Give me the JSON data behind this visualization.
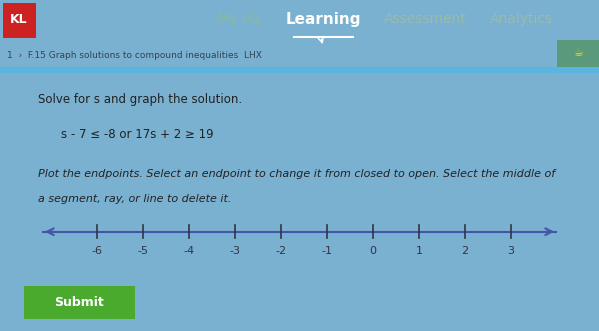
{
  "header_bg": "#2d5a4a",
  "header_text": "My IXL",
  "header_learning": "Learning",
  "header_assessment": "Assessment",
  "header_analytics": "Analytics",
  "nav_bg": "#c8daea",
  "nav_bg2": "#5ab4e0",
  "nav_text": "1  ›  F.15 Graph solutions to compound inequalities  LHX",
  "card_bg": "#dcdcd0",
  "title_line1": "Solve for s and graph the solution.",
  "equation": "s - 7 ≤ -8 or 17s + 2 ≥ 19",
  "instruction1": "Plot the endpoints. Select an endpoint to change it from closed to open. Select the middle of",
  "instruction2": "a segment, ray, or line to delete it.",
  "number_line_min": -7.2,
  "number_line_max": 4.0,
  "tick_labels": [
    "-6",
    "-5",
    "-4",
    "-3",
    "-2",
    "-1",
    "0",
    "1",
    "2",
    "3"
  ],
  "tick_values": [
    -6,
    -5,
    -4,
    -3,
    -2,
    -1,
    0,
    1,
    2,
    3
  ],
  "submit_bg": "#4aaa2e",
  "submit_text": "Submit",
  "submit_text_color": "#ffffff",
  "logo_bg": "#cc2222",
  "logo_text": "KL",
  "line_color": "#4455aa",
  "tick_color": "#333344",
  "main_bg": "#7ab0d0",
  "trophy_bg": "#5a9a7a",
  "header_my_ixl_color": "#88bb99",
  "header_learning_color": "#ffffff",
  "header_other_color": "#99bbaa"
}
